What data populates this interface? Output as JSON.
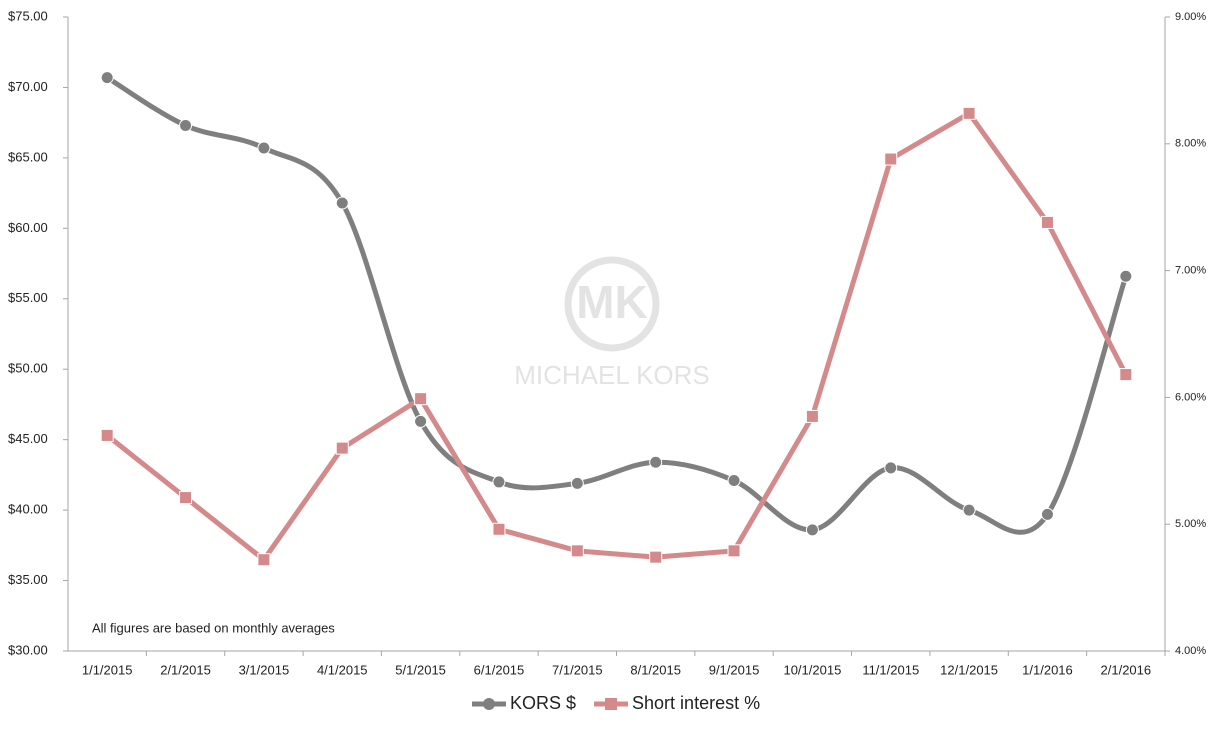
{
  "chart_data": {
    "type": "line",
    "categories": [
      "1/1/2015",
      "2/1/2015",
      "3/1/2015",
      "4/1/2015",
      "5/1/2015",
      "6/1/2015",
      "7/1/2015",
      "8/1/2015",
      "9/1/2015",
      "10/1/2015",
      "11/1/2015",
      "12/1/2015",
      "1/1/2016",
      "2/1/2016"
    ],
    "series": [
      {
        "name": "KORS $",
        "color": "#7f7f7f",
        "smooth": true,
        "marker": "circle",
        "values": [
          70.7,
          67.3,
          65.7,
          61.8,
          46.3,
          42.0,
          41.9,
          43.4,
          42.1,
          38.6,
          43.0,
          40.0,
          39.7,
          56.6
        ]
      },
      {
        "name": "Short interest %",
        "color": "#d4898a",
        "smooth": false,
        "marker": "square",
        "axis": "y2",
        "values": [
          5.7,
          5.21,
          4.72,
          5.6,
          5.99,
          4.96,
          4.79,
          4.74,
          4.79,
          5.85,
          7.88,
          8.24,
          7.38,
          6.18
        ]
      }
    ],
    "ylim": [
      30,
      75
    ],
    "yticks": [
      {
        "value": 30,
        "label": "$30.00"
      },
      {
        "value": 35,
        "label": "$35.00"
      },
      {
        "value": 40,
        "label": "$40.00"
      },
      {
        "value": 45,
        "label": "$45.00"
      },
      {
        "value": 50,
        "label": "$50.00"
      },
      {
        "value": 55,
        "label": "$55.00"
      },
      {
        "value": 60,
        "label": "$60.00"
      },
      {
        "value": 65,
        "label": "$65.00"
      },
      {
        "value": 70,
        "label": "$70.00"
      },
      {
        "value": 75,
        "label": "$75.00"
      }
    ],
    "y2lim": [
      4,
      9
    ],
    "y2ticks": [
      {
        "value": 4,
        "label": "4.00%"
      },
      {
        "value": 5,
        "label": "5.00%"
      },
      {
        "value": 6,
        "label": "6.00%"
      },
      {
        "value": 7,
        "label": "7.00%"
      },
      {
        "value": 8,
        "label": "8.00%"
      },
      {
        "value": 9,
        "label": "9.00%"
      }
    ],
    "grid": false,
    "legend": "bottom",
    "annotation": "All figures are based on monthly averages",
    "watermark": {
      "logo": "MK",
      "text": "MICHAEL KORS"
    }
  }
}
